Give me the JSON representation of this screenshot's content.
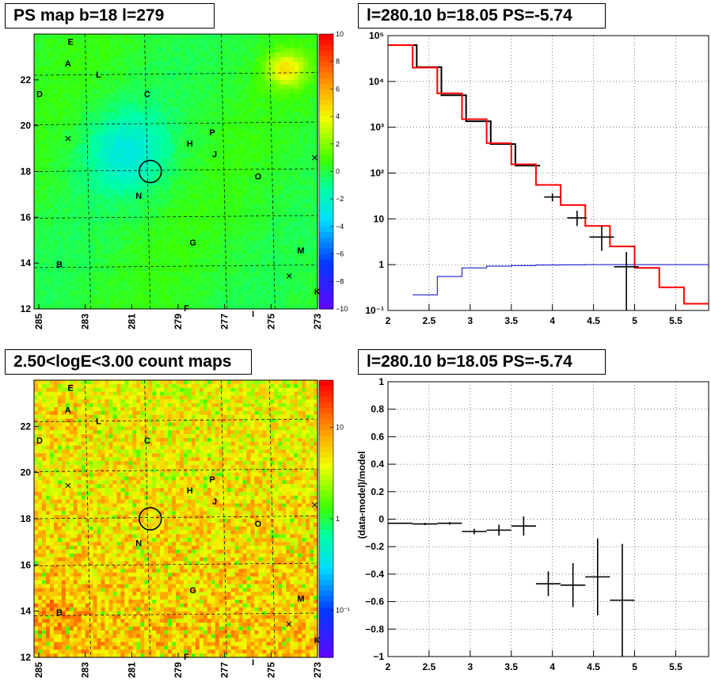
{
  "panels": {
    "ps_map_title": "PS map b=18 l=279",
    "spectrum_title": "l=280.10 b=18.05 PS=-5.74",
    "count_map_title": "2.50<logE<3.00 count maps",
    "residual_title": "l=280.10 b=18.05 PS=-5.74"
  },
  "colors": {
    "data_points": "#000000",
    "model_line": "#ff0000",
    "secondary_line": "#0000cc"
  },
  "chart_data": [
    {
      "type": "heatmap",
      "name_ref": "PS map",
      "x_ticks": [
        "285",
        "283",
        "281",
        "279",
        "277",
        "275",
        "273"
      ],
      "y_ticks": [
        "12",
        "14",
        "16",
        "18",
        "20",
        "22"
      ],
      "colorbar_ticks": [
        "10",
        "8",
        "6",
        "4",
        "2",
        "0",
        "−2",
        "−4",
        "−6",
        "−8",
        "−10"
      ],
      "colorbar_range": [
        -10,
        10
      ],
      "source_labels": [
        "E",
        "A",
        "L",
        "D",
        "C",
        "P",
        "H",
        "J",
        "O",
        "N",
        "G",
        "M",
        "B",
        "K",
        "F",
        "I"
      ],
      "marked_source": {
        "l": 280.1,
        "b": 18.05
      }
    },
    {
      "type": "line",
      "name_ref": "spectrum",
      "xlim": [
        2,
        5.9
      ],
      "ylim_log": [
        0.1,
        100000
      ],
      "x_ticks": [
        "2",
        "2.5",
        "3",
        "3.5",
        "4",
        "4.5",
        "5",
        "5.5"
      ],
      "y_ticks": [
        "10⁻¹",
        "1",
        "10",
        "10²",
        "10³",
        "10⁴",
        "10⁵"
      ],
      "data_points": [
        {
          "x": 4.0,
          "y": 30,
          "xerr": 0.1,
          "ylo": 24,
          "yhi": 36
        },
        {
          "x": 4.3,
          "y": 10.5,
          "xerr": 0.12,
          "ylo": 7,
          "yhi": 15
        },
        {
          "x": 4.6,
          "y": 4,
          "xerr": 0.15,
          "ylo": 2,
          "yhi": 7
        },
        {
          "x": 4.9,
          "y": 0.9,
          "xerr": 0.15,
          "ylo": 0.1,
          "yhi": 1.9
        }
      ],
      "histogram_data_steps": [
        {
          "x0": 2.0,
          "x1": 2.35,
          "y": 62000
        },
        {
          "x0": 2.35,
          "x1": 2.65,
          "y": 20500
        },
        {
          "x0": 2.65,
          "x1": 2.95,
          "y": 5000
        },
        {
          "x0": 2.95,
          "x1": 3.25,
          "y": 1350
        },
        {
          "x0": 3.25,
          "x1": 3.55,
          "y": 430
        },
        {
          "x0": 3.55,
          "x1": 3.85,
          "y": 145
        }
      ],
      "model_steps": [
        {
          "x0": 2.0,
          "x1": 2.3,
          "y": 62000
        },
        {
          "x0": 2.3,
          "x1": 2.6,
          "y": 20000
        },
        {
          "x0": 2.6,
          "x1": 2.9,
          "y": 5500
        },
        {
          "x0": 2.9,
          "x1": 3.2,
          "y": 1500
        },
        {
          "x0": 3.2,
          "x1": 3.5,
          "y": 450
        },
        {
          "x0": 3.5,
          "x1": 3.8,
          "y": 155
        },
        {
          "x0": 3.8,
          "x1": 4.1,
          "y": 55
        },
        {
          "x0": 4.1,
          "x1": 4.4,
          "y": 20
        },
        {
          "x0": 4.4,
          "x1": 4.7,
          "y": 7
        },
        {
          "x0": 4.7,
          "x1": 5.0,
          "y": 2.5
        },
        {
          "x0": 5.0,
          "x1": 5.3,
          "y": 0.85
        },
        {
          "x0": 5.3,
          "x1": 5.6,
          "y": 0.32
        },
        {
          "x0": 5.6,
          "x1": 5.9,
          "y": 0.14
        }
      ],
      "secondary_steps": [
        {
          "x0": 2.3,
          "x1": 2.6,
          "y": 0.22
        },
        {
          "x0": 2.6,
          "x1": 2.9,
          "y": 0.55
        },
        {
          "x0": 2.9,
          "x1": 3.2,
          "y": 0.85
        },
        {
          "x0": 3.2,
          "x1": 3.5,
          "y": 0.93
        },
        {
          "x0": 3.5,
          "x1": 3.8,
          "y": 0.96
        },
        {
          "x0": 3.8,
          "x1": 4.1,
          "y": 0.98
        },
        {
          "x0": 4.1,
          "x1": 4.4,
          "y": 0.99
        },
        {
          "x0": 4.4,
          "x1": 5.9,
          "y": 1.0
        }
      ]
    },
    {
      "type": "heatmap",
      "name_ref": "count map",
      "x_ticks": [
        "285",
        "283",
        "281",
        "279",
        "277",
        "275",
        "273"
      ],
      "y_ticks": [
        "12",
        "14",
        "16",
        "18",
        "20",
        "22"
      ],
      "colorbar_ticks": [
        "10",
        "1",
        "10⁻¹"
      ],
      "source_labels": [
        "E",
        "A",
        "L",
        "D",
        "C",
        "P",
        "H",
        "J",
        "O",
        "N",
        "G",
        "M",
        "B",
        "K",
        "F",
        "I"
      ],
      "marked_source": {
        "l": 280.1,
        "b": 18.05
      }
    },
    {
      "type": "scatter",
      "name_ref": "residual",
      "ylabel": "(data-model)/model",
      "xlim": [
        2,
        5.9
      ],
      "ylim": [
        -1,
        1
      ],
      "x_ticks": [
        "2",
        "2.5",
        "3",
        "3.5",
        "4",
        "4.5",
        "5",
        "5.5"
      ],
      "y_ticks": [
        "−1",
        "−0.8",
        "−0.6",
        "−0.4",
        "−0.2",
        "0",
        "0.2",
        "0.4",
        "0.6",
        "0.8",
        "1"
      ],
      "points": [
        {
          "x": 2.15,
          "y": -0.03,
          "xerr": 0.15,
          "yerr": 0.005
        },
        {
          "x": 2.45,
          "y": -0.035,
          "xerr": 0.15,
          "yerr": 0.008
        },
        {
          "x": 2.75,
          "y": -0.03,
          "xerr": 0.15,
          "yerr": 0.01
        },
        {
          "x": 3.05,
          "y": -0.09,
          "xerr": 0.15,
          "yerr": 0.02
        },
        {
          "x": 3.35,
          "y": -0.08,
          "xerr": 0.15,
          "yerr": 0.04
        },
        {
          "x": 3.65,
          "y": -0.05,
          "xerr": 0.15,
          "yerr": 0.07
        },
        {
          "x": 3.95,
          "y": -0.47,
          "xerr": 0.15,
          "yerr": 0.09
        },
        {
          "x": 4.25,
          "y": -0.48,
          "xerr": 0.15,
          "yerr": 0.16
        },
        {
          "x": 4.55,
          "y": -0.42,
          "xerr": 0.15,
          "yerr": 0.28
        },
        {
          "x": 4.85,
          "y": -0.59,
          "xerr": 0.15,
          "yerr": 0.41
        }
      ]
    }
  ]
}
